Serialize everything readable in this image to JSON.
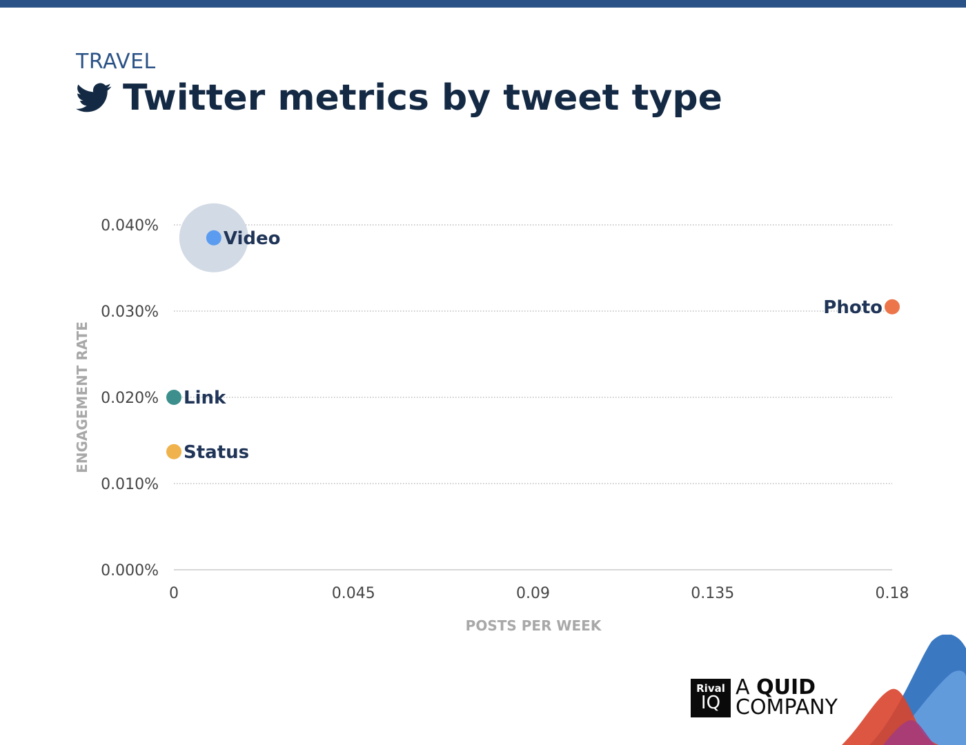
{
  "header": {
    "kicker": "TRAVEL",
    "title": "Twitter metrics by tweet type",
    "icon": "twitter-bird-icon"
  },
  "chart_data": {
    "type": "scatter",
    "xlabel": "POSTS PER WEEK",
    "ylabel": "ENGAGEMENT RATE",
    "xlim": [
      0,
      0.18
    ],
    "ylim": [
      0,
      0.04
    ],
    "x_ticks": [
      {
        "value": 0,
        "label": "0"
      },
      {
        "value": 0.045,
        "label": "0.045"
      },
      {
        "value": 0.09,
        "label": "0.09"
      },
      {
        "value": 0.135,
        "label": "0.135"
      },
      {
        "value": 0.18,
        "label": "0.18"
      }
    ],
    "y_ticks": [
      {
        "value": 0,
        "label": "0.000%"
      },
      {
        "value": 0.01,
        "label": "0.010%"
      },
      {
        "value": 0.02,
        "label": "0.020%"
      },
      {
        "value": 0.03,
        "label": "0.030%"
      },
      {
        "value": 0.04,
        "label": "0.040%"
      }
    ],
    "grid": true,
    "points": [
      {
        "name": "Video",
        "x": 0.01,
        "y": 0.0385,
        "color": "#5b9cf0",
        "highlight": true,
        "label_side": "right"
      },
      {
        "name": "Photo",
        "x": 0.18,
        "y": 0.0305,
        "color": "#ec7549",
        "highlight": false,
        "label_side": "left"
      },
      {
        "name": "Link",
        "x": 0.0,
        "y": 0.02,
        "color": "#3c8f8c",
        "highlight": false,
        "label_side": "right"
      },
      {
        "name": "Status",
        "x": 0.0,
        "y": 0.0137,
        "color": "#efb24c",
        "highlight": false,
        "label_side": "right"
      }
    ]
  },
  "footer": {
    "logo_line1": "Rival",
    "logo_line2": "IQ",
    "tagline_a": "A",
    "tagline_quid": "QUID",
    "tagline_company": "COMPANY"
  },
  "colors": {
    "brand_blue": "#2b5286",
    "title": "#142a44",
    "label": "#1f3457",
    "axis_title": "#a8a8a8",
    "tick": "#444444"
  }
}
